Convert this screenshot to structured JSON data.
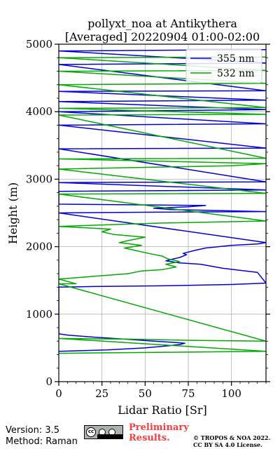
{
  "chart_data": {
    "type": "line",
    "title": "pollyxt_noa at Antikythera",
    "subtitle": "[Averaged] 20220904 01:00-02:00",
    "xlabel": "Lidar Ratio [Sr]",
    "ylabel": "Height (m)",
    "xlim": [
      0,
      120
    ],
    "ylim": [
      0,
      5000
    ],
    "xticks": [
      "0",
      "25",
      "50",
      "75",
      "100"
    ],
    "yticks": [
      "0",
      "1000",
      "2000",
      "3000",
      "4000",
      "5000"
    ],
    "grid": true,
    "legend_position": "top-right",
    "series": [
      {
        "name": "355 nm",
        "color": "#0000dd",
        "points": [
          [
            0,
            450
          ],
          [
            28,
            470
          ],
          [
            50,
            500
          ],
          [
            63,
            530
          ],
          [
            70,
            550
          ],
          [
            73,
            570
          ],
          [
            68,
            580
          ],
          [
            55,
            600
          ],
          [
            38,
            630
          ],
          [
            20,
            660
          ],
          [
            5,
            690
          ],
          [
            0,
            710
          ],
          [
            0,
            1400
          ],
          [
            20,
            1410
          ],
          [
            60,
            1420
          ],
          [
            100,
            1440
          ],
          [
            120,
            1460
          ],
          [
            115,
            1620
          ],
          [
            95,
            1680
          ],
          [
            82,
            1740
          ],
          [
            70,
            1760
          ],
          [
            62,
            1790
          ],
          [
            65,
            1810
          ],
          [
            70,
            1840
          ],
          [
            74,
            1880
          ],
          [
            72,
            1900
          ],
          [
            78,
            1940
          ],
          [
            85,
            1980
          ],
          [
            100,
            2020
          ],
          [
            115,
            2040
          ],
          [
            120,
            2060
          ],
          [
            0,
            2500
          ],
          [
            50,
            2510
          ],
          [
            120,
            2520
          ],
          [
            65,
            2550
          ],
          [
            55,
            2570
          ],
          [
            75,
            2590
          ],
          [
            85,
            2610
          ],
          [
            0,
            2630
          ],
          [
            0,
            2820
          ],
          [
            120,
            2840
          ],
          [
            0,
            2950
          ],
          [
            120,
            2960
          ],
          [
            0,
            3450
          ],
          [
            120,
            3460
          ],
          [
            0,
            3800
          ],
          [
            120,
            3820
          ],
          [
            0,
            4000
          ],
          [
            120,
            4030
          ],
          [
            0,
            4150
          ],
          [
            120,
            4170
          ],
          [
            0,
            4300
          ],
          [
            120,
            4310
          ],
          [
            0,
            4700
          ],
          [
            120,
            4720
          ],
          [
            0,
            4900
          ],
          [
            120,
            4920
          ]
        ]
      },
      {
        "name": "532 nm",
        "color": "#00aa00",
        "points": [
          [
            0,
            420
          ],
          [
            40,
            430
          ],
          [
            80,
            440
          ],
          [
            120,
            450
          ],
          [
            0,
            640
          ],
          [
            40,
            630
          ],
          [
            80,
            610
          ],
          [
            120,
            600
          ],
          [
            0,
            1450
          ],
          [
            10,
            1450
          ],
          [
            0,
            1520
          ],
          [
            20,
            1560
          ],
          [
            40,
            1600
          ],
          [
            48,
            1640
          ],
          [
            60,
            1660
          ],
          [
            68,
            1700
          ],
          [
            62,
            1740
          ],
          [
            70,
            1780
          ],
          [
            63,
            1820
          ],
          [
            60,
            1860
          ],
          [
            52,
            1900
          ],
          [
            45,
            1940
          ],
          [
            38,
            1980
          ],
          [
            48,
            2020
          ],
          [
            35,
            2060
          ],
          [
            42,
            2100
          ],
          [
            50,
            2140
          ],
          [
            32,
            2180
          ],
          [
            25,
            2220
          ],
          [
            30,
            2260
          ],
          [
            0,
            2300
          ],
          [
            60,
            2350
          ],
          [
            120,
            2380
          ],
          [
            0,
            2780
          ],
          [
            120,
            2790
          ],
          [
            0,
            3150
          ],
          [
            100,
            3200
          ],
          [
            120,
            3230
          ],
          [
            0,
            3300
          ],
          [
            120,
            3310
          ],
          [
            0,
            3950
          ],
          [
            120,
            3960
          ],
          [
            0,
            4050
          ],
          [
            120,
            4060
          ],
          [
            0,
            4400
          ],
          [
            120,
            4420
          ],
          [
            0,
            4600
          ],
          [
            120,
            4610
          ],
          [
            0,
            4800
          ],
          [
            120,
            4810
          ]
        ]
      }
    ]
  },
  "footer": {
    "version": "Version: 3.5",
    "method": "Method: Raman",
    "preliminary_line1": "Preliminary",
    "preliminary_line2": "Results.",
    "copyright_line1": "© TROPOS & NOA 2022.",
    "copyright_line2": "CC BY SA 4.0 License."
  }
}
